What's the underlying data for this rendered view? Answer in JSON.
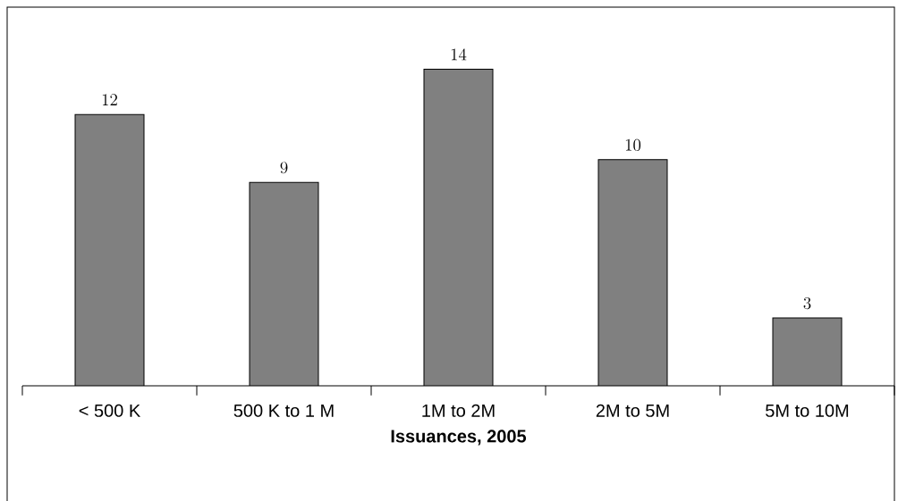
{
  "chart_data": {
    "type": "bar",
    "xlabel": "Issuances, 2005",
    "categories": [
      "< 500 K",
      "500 K to 1 M",
      "1M to 2M",
      "2M to 5M",
      "5M to 10M"
    ],
    "values": [
      12,
      9,
      14,
      10,
      3
    ],
    "color": "#808080",
    "data_labels": true
  }
}
